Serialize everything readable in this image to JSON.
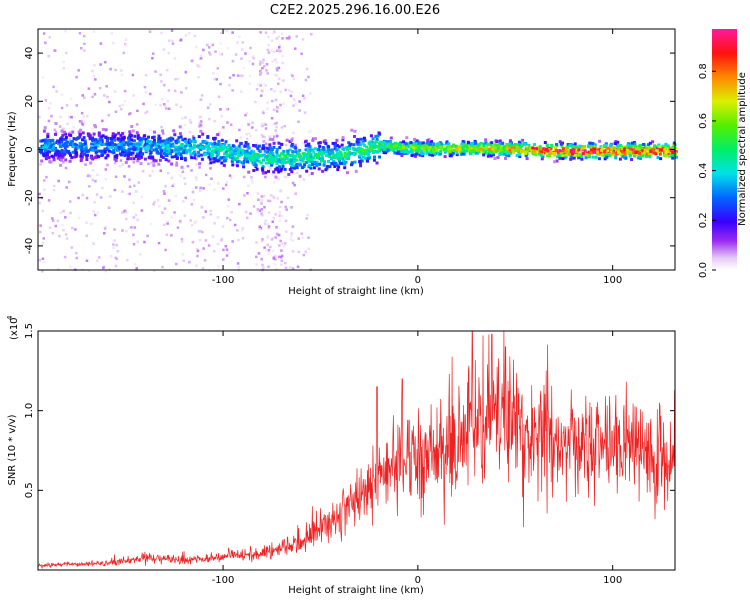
{
  "title": "C2E2.2025.296.16.00.E26",
  "colors": {
    "snr_line": "#ee2222",
    "frame": "#000000",
    "background": "#ffffff"
  },
  "chart_data": [
    {
      "type": "heatmap",
      "name": "spectrogram",
      "xlabel": "Height of straight line (km)",
      "ylabel": "Frequency (Hz)",
      "xlim": [
        -195,
        132
      ],
      "ylim": [
        -50,
        50
      ],
      "xticks": [
        -100,
        0,
        100
      ],
      "yticks": [
        -40,
        -20,
        0,
        20,
        40
      ],
      "colorbar": {
        "label": "Normalized spectral amplitude",
        "range": [
          0,
          0.97
        ],
        "ticks": [
          "0.0",
          "0.2",
          "0.4",
          "0.6",
          "0.8"
        ],
        "tick_values": [
          0.0,
          0.2,
          0.4,
          0.6,
          0.8
        ]
      },
      "ridge": {
        "description_points": [
          {
            "x": -190,
            "f": 2,
            "amp": 0.35
          },
          {
            "x": -150,
            "f": 2,
            "amp": 0.35
          },
          {
            "x": -110,
            "f": 1,
            "amp": 0.45
          },
          {
            "x": -80,
            "f": -3,
            "amp": 0.5
          },
          {
            "x": -40,
            "f": -2,
            "amp": 0.5
          },
          {
            "x": -20,
            "f": 2,
            "amp": 0.55
          },
          {
            "x": 0,
            "f": 1,
            "amp": 0.65
          },
          {
            "x": 40,
            "f": 1,
            "amp": 0.75
          },
          {
            "x": 70,
            "f": 0,
            "amp": 0.95
          },
          {
            "x": 130,
            "f": 0,
            "amp": 0.95
          }
        ]
      }
    },
    {
      "type": "line",
      "name": "snr",
      "xlabel": "Height of straight line (km)",
      "ylabel": "SNR (10 * v/v)",
      "scale_label": "(x10",
      "scale_exp": "4",
      "xlim": [
        -195,
        132
      ],
      "ylim": [
        0,
        15000
      ],
      "xticks": [
        -100,
        0,
        100
      ],
      "yticks": [
        5000,
        10000,
        15000
      ],
      "ytick_labels": [
        "0.5",
        "1.0",
        "1.5"
      ],
      "envelope": {
        "x": [
          -195,
          -160,
          -140,
          -120,
          -100,
          -80,
          -60,
          -40,
          -30,
          -20,
          -10,
          0,
          10,
          20,
          30,
          40,
          50,
          60,
          80,
          100,
          120,
          132
        ],
        "y": [
          300,
          500,
          900,
          700,
          900,
          1200,
          2000,
          4000,
          5500,
          7000,
          8000,
          8500,
          9000,
          9500,
          11000,
          11500,
          10500,
          9500,
          9000,
          8800,
          8500,
          8500
        ]
      },
      "peaks": [
        {
          "x": 28,
          "y": 15200
        },
        {
          "x": 38,
          "y": 14800
        },
        {
          "x": 45,
          "y": 14000
        },
        {
          "x": -8,
          "y": 12000
        },
        {
          "x": -21,
          "y": 11500
        }
      ]
    }
  ]
}
